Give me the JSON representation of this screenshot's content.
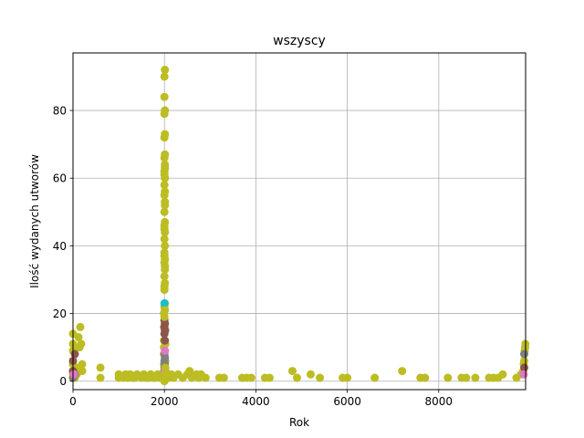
{
  "chart_data": {
    "type": "scatter",
    "title": "wszyscy",
    "xlabel": "Rok",
    "ylabel": "Ilość wydanych utworów",
    "xlim": [
      0,
      9900
    ],
    "ylim": [
      -2.5,
      97
    ],
    "grid": true,
    "xticks": [
      0,
      2000,
      4000,
      6000,
      8000
    ],
    "xtick_labels": [
      "0",
      "2000",
      "4000",
      "6000",
      "8000"
    ],
    "yticks": [
      0,
      20,
      40,
      60,
      80
    ],
    "ytick_labels": [
      "0",
      "20",
      "40",
      "60",
      "80"
    ],
    "series": [
      {
        "color": "#bcbd22",
        "points": [
          [
            0,
            1
          ],
          [
            0,
            2
          ],
          [
            0,
            3
          ],
          [
            0,
            5
          ],
          [
            0,
            9
          ],
          [
            0,
            11
          ],
          [
            0,
            14
          ],
          [
            40,
            1
          ],
          [
            60,
            4
          ],
          [
            80,
            2
          ],
          [
            120,
            13
          ],
          [
            140,
            10
          ],
          [
            160,
            16
          ],
          [
            180,
            11
          ],
          [
            200,
            3
          ],
          [
            200,
            5
          ],
          [
            600,
            1
          ],
          [
            600,
            4
          ],
          [
            1000,
            1
          ],
          [
            1000,
            2
          ],
          [
            1100,
            1
          ],
          [
            1150,
            2
          ],
          [
            1200,
            1
          ],
          [
            1250,
            2
          ],
          [
            1300,
            1
          ],
          [
            1350,
            1
          ],
          [
            1400,
            2
          ],
          [
            1500,
            1
          ],
          [
            1550,
            2
          ],
          [
            1600,
            1
          ],
          [
            1650,
            1
          ],
          [
            1700,
            2
          ],
          [
            1750,
            1
          ],
          [
            1800,
            1
          ],
          [
            1850,
            2
          ],
          [
            1900,
            1
          ],
          [
            1950,
            2
          ],
          [
            1990,
            1
          ],
          [
            1990,
            2
          ],
          [
            1990,
            3
          ],
          [
            1990,
            5
          ],
          [
            1990,
            8
          ],
          [
            1990,
            10
          ],
          [
            1990,
            12
          ],
          [
            1990,
            16
          ],
          [
            1990,
            20
          ],
          [
            2000,
            22
          ],
          [
            2000,
            28
          ],
          [
            2000,
            35
          ],
          [
            2000,
            38
          ],
          [
            2000,
            42
          ],
          [
            2000,
            45
          ],
          [
            2000,
            50
          ],
          [
            2000,
            55
          ],
          [
            2000,
            58
          ],
          [
            2000,
            62
          ],
          [
            2000,
            66
          ],
          [
            2000,
            72
          ],
          [
            2000,
            79
          ],
          [
            2000,
            84
          ],
          [
            2000,
            90
          ],
          [
            2010,
            23
          ],
          [
            2010,
            29
          ],
          [
            2010,
            33
          ],
          [
            2010,
            36
          ],
          [
            2010,
            40
          ],
          [
            2010,
            44
          ],
          [
            2010,
            47
          ],
          [
            2010,
            52
          ],
          [
            2010,
            56
          ],
          [
            2010,
            60
          ],
          [
            2010,
            64
          ],
          [
            2010,
            67
          ],
          [
            2010,
            73
          ],
          [
            2010,
            80
          ],
          [
            2010,
            92
          ],
          [
            2020,
            1
          ],
          [
            2020,
            2
          ],
          [
            2020,
            3
          ],
          [
            2020,
            6
          ],
          [
            2020,
            11
          ],
          [
            2020,
            15
          ],
          [
            2100,
            1
          ],
          [
            2150,
            2
          ],
          [
            2200,
            1
          ],
          [
            2300,
            2
          ],
          [
            2400,
            1
          ],
          [
            2500,
            2
          ],
          [
            2550,
            3
          ],
          [
            2600,
            1
          ],
          [
            2700,
            2
          ],
          [
            2750,
            1
          ],
          [
            2800,
            2
          ],
          [
            2900,
            1
          ],
          [
            3200,
            1
          ],
          [
            3300,
            1
          ],
          [
            3700,
            1
          ],
          [
            3800,
            1
          ],
          [
            3900,
            1
          ],
          [
            4200,
            1
          ],
          [
            4300,
            1
          ],
          [
            4800,
            3
          ],
          [
            4900,
            1
          ],
          [
            5200,
            2
          ],
          [
            5400,
            1
          ],
          [
            5900,
            1
          ],
          [
            6000,
            1
          ],
          [
            6600,
            1
          ],
          [
            7200,
            3
          ],
          [
            7600,
            1
          ],
          [
            7700,
            1
          ],
          [
            8200,
            1
          ],
          [
            8500,
            1
          ],
          [
            8600,
            1
          ],
          [
            8800,
            1
          ],
          [
            9100,
            1
          ],
          [
            9200,
            1
          ],
          [
            9300,
            1
          ],
          [
            9400,
            2
          ],
          [
            9700,
            1
          ],
          [
            9800,
            2
          ],
          [
            9850,
            3
          ],
          [
            9860,
            5
          ],
          [
            9870,
            6
          ],
          [
            9880,
            9
          ],
          [
            9890,
            10
          ],
          [
            9895,
            11
          ]
        ]
      },
      {
        "color": "#8c564b",
        "points": [
          [
            0,
            3
          ],
          [
            0,
            6
          ],
          [
            40,
            8
          ],
          [
            2000,
            14
          ],
          [
            2000,
            16
          ],
          [
            2000,
            18
          ],
          [
            2010,
            12
          ],
          [
            2010,
            15
          ],
          [
            2010,
            17
          ],
          [
            9870,
            4
          ]
        ]
      },
      {
        "color": "#7f7f7f",
        "points": [
          [
            0,
            1
          ],
          [
            40,
            2
          ],
          [
            2000,
            4
          ],
          [
            2000,
            6
          ],
          [
            2000,
            8
          ],
          [
            2010,
            5
          ],
          [
            2010,
            7
          ],
          [
            9870,
            8
          ]
        ]
      },
      {
        "color": "#e377c2",
        "points": [
          [
            20,
            2
          ],
          [
            2000,
            3
          ],
          [
            2010,
            9
          ],
          [
            9860,
            2
          ]
        ]
      },
      {
        "color": "#17becf",
        "points": [
          [
            2000,
            23
          ]
        ]
      },
      {
        "color": "#bcbd22",
        "points": [
          [
            2000,
            0
          ],
          [
            2010,
            2
          ],
          [
            2020,
            4
          ],
          [
            2000,
            19
          ],
          [
            2010,
            21
          ],
          [
            2000,
            27
          ],
          [
            2000,
            31
          ],
          [
            2010,
            34
          ],
          [
            2000,
            37
          ],
          [
            2000,
            46
          ],
          [
            2010,
            53
          ],
          [
            2000,
            61
          ],
          [
            2010,
            63
          ]
        ]
      }
    ]
  }
}
